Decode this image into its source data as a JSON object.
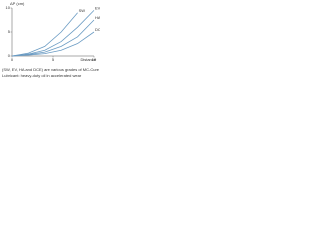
{
  "chart_data": {
    "type": "line",
    "ylabel": "ΔP (cm)",
    "xlabel": "Distance",
    "x": [
      0,
      2,
      4,
      6,
      8,
      10
    ],
    "series": [
      {
        "name": "SW",
        "color": "#6a9bc3",
        "values": [
          0,
          0.6,
          2,
          5,
          9,
          null
        ]
      },
      {
        "name": "EV",
        "color": "#6a9bc3",
        "values": [
          0,
          0.4,
          1.2,
          3,
          6,
          9.5
        ]
      },
      {
        "name": "HA",
        "color": "#6a9bc3",
        "values": [
          0,
          0.3,
          0.8,
          2,
          4,
          7.5
        ]
      },
      {
        "name": "DCE",
        "color": "#6a9bc3",
        "values": [
          0,
          0.2,
          0.5,
          1.2,
          2.6,
          5
        ]
      }
    ],
    "xlim": [
      0,
      10
    ],
    "ylim": [
      0,
      10
    ],
    "xticks": [
      0,
      5,
      10
    ],
    "yticks": [
      0,
      5,
      10
    ],
    "caption": [
      "(SW, EV, HA and DCE) are various grades of MC-Cure",
      "Lubricant: heavy-duty oil in accelerated wear"
    ]
  }
}
